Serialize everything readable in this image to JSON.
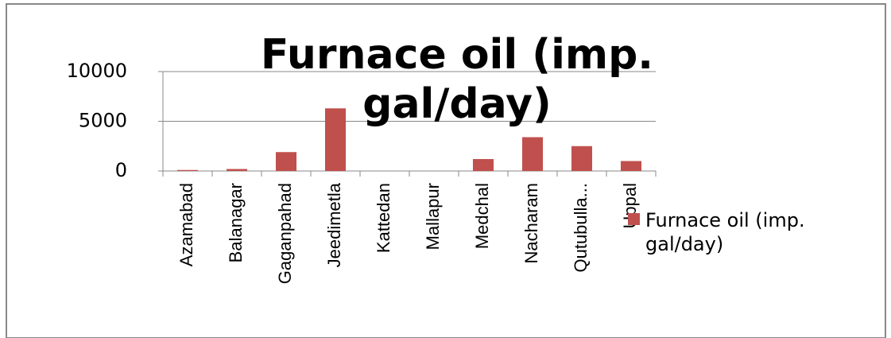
{
  "chart_data": {
    "type": "bar",
    "title": "Furnace oil (imp. gal/day)",
    "categories": [
      "Azamabad",
      "Balanagar",
      "Gaganpahad",
      "Jeedimetla",
      "Kattedan",
      "Mallapur",
      "Medchal",
      "Nacharam",
      "Qutubulla...",
      "Uppal"
    ],
    "series": [
      {
        "name": "Furnace oil (imp. gal/day)",
        "color": "#c0504d",
        "values": [
          100,
          200,
          1900,
          6300,
          0,
          0,
          1200,
          3400,
          2500,
          1000
        ]
      }
    ],
    "ylim": [
      0,
      10000
    ],
    "yticks": [
      0,
      5000,
      10000
    ],
    "grid": true,
    "legend": "right"
  }
}
